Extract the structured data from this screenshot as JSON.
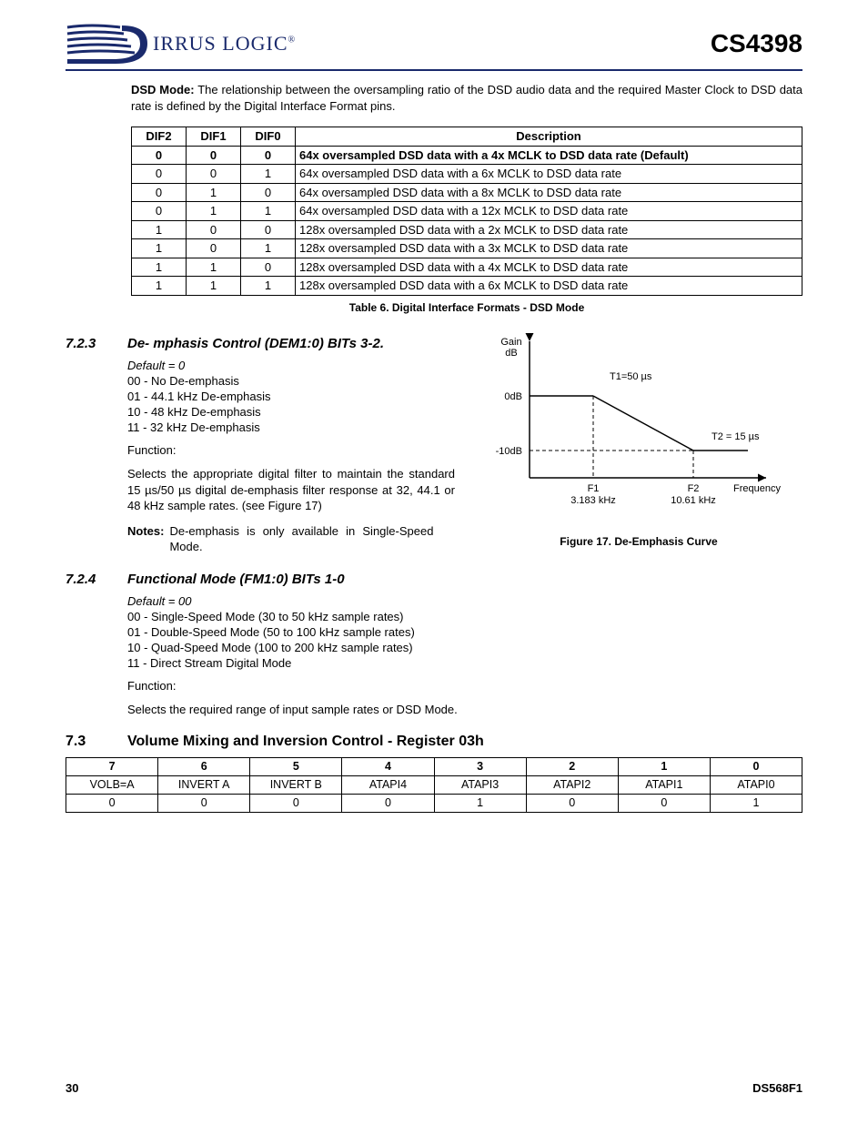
{
  "header": {
    "logo_text": "IRRUS LOGIC",
    "logo_reg": "®",
    "doc_title": "CS4398"
  },
  "intro": {
    "bold_lead": "DSD Mode:",
    "text": " The relationship between the oversampling ratio of the DSD audio data and the required Master Clock to DSD data rate is defined by the Digital Interface Format pins."
  },
  "table6": {
    "headers": [
      "DIF2",
      "DIF1",
      "DIF0",
      "Description"
    ],
    "rows": [
      {
        "dif2": "0",
        "dif1": "0",
        "dif0": "0",
        "desc": "64x oversampled DSD data with a 4x MCLK to DSD data rate (Default)",
        "bold": true
      },
      {
        "dif2": "0",
        "dif1": "0",
        "dif0": "1",
        "desc": "64x oversampled DSD data with a 6x MCLK to DSD data rate",
        "bold": false
      },
      {
        "dif2": "0",
        "dif1": "1",
        "dif0": "0",
        "desc": "64x oversampled DSD data with a 8x MCLK to DSD data rate",
        "bold": false
      },
      {
        "dif2": "0",
        "dif1": "1",
        "dif0": "1",
        "desc": "64x oversampled DSD data with a 12x MCLK to DSD data rate",
        "bold": false
      },
      {
        "dif2": "1",
        "dif1": "0",
        "dif0": "0",
        "desc": "128x oversampled DSD data with a 2x MCLK to DSD data rate",
        "bold": false
      },
      {
        "dif2": "1",
        "dif1": "0",
        "dif0": "1",
        "desc": "128x oversampled DSD data with a 3x MCLK to DSD data rate",
        "bold": false
      },
      {
        "dif2": "1",
        "dif1": "1",
        "dif0": "0",
        "desc": "128x oversampled DSD data with a 4x MCLK to DSD data rate",
        "bold": false
      },
      {
        "dif2": "1",
        "dif1": "1",
        "dif0": "1",
        "desc": "128x oversampled DSD data with a 6x MCLK to DSD data rate",
        "bold": false
      }
    ],
    "caption": "Table 6. Digital Interface Formats - DSD Mode"
  },
  "sec723": {
    "num": "7.2.3",
    "title": "De-  mphasis Control (DEM1:0) BITs 3-2.",
    "default": "Default = 0",
    "opts": [
      "00 - No De-emphasis",
      "01 - 44.1 kHz De-emphasis",
      "10 - 48 kHz De-emphasis",
      "11 - 32 kHz De-emphasis"
    ],
    "func_label": "Function:",
    "func_text": "Selects the appropriate digital filter to maintain the standard 15 µs/50 µs digital de-emphasis filter response at 32, 44.1 or 48 kHz sample rates. (see Figure 17)",
    "notes_label": "Notes:",
    "notes_text": "De-emphasis is only available in Single-Speed Mode."
  },
  "fig17": {
    "y_label_top": "Gain",
    "y_label_unit": "dB",
    "y_tick_0": "0dB",
    "y_tick_m10": "-10dB",
    "t1": "T1=50 µs",
    "t2": "T2 = 15 µs",
    "f1_lbl": "F1",
    "f1_val": "3.183 kHz",
    "f2_lbl": "F2",
    "f2_val": "10.61 kHz",
    "x_label": "Frequency",
    "caption": "Figure 17.  De-Emphasis Curve"
  },
  "sec724": {
    "num": "7.2.4",
    "title": "Functional Mode (FM1:0) BITs 1-0",
    "default": "Default = 00",
    "opts": [
      "00 - Single-Speed Mode (30 to 50 kHz sample rates)",
      "01 - Double-Speed Mode (50 to 100 kHz sample rates)",
      "10 - Quad-Speed Mode (100 to 200 kHz sample rates)",
      "11 - Direct Stream Digital Mode"
    ],
    "func_label": "Function:",
    "func_text": "Selects the required range of input sample rates or DSD Mode."
  },
  "sec73": {
    "num": "7.3",
    "title": "Volume Mixing and Inversion Control - Register 03h",
    "bits": [
      "7",
      "6",
      "5",
      "4",
      "3",
      "2",
      "1",
      "0"
    ],
    "names": [
      "VOLB=A",
      "INVERT A",
      "INVERT B",
      "ATAPI4",
      "ATAPI3",
      "ATAPI2",
      "ATAPI1",
      "ATAPI0"
    ],
    "vals": [
      "0",
      "0",
      "0",
      "0",
      "1",
      "0",
      "0",
      "1"
    ]
  },
  "footer": {
    "page": "30",
    "docnum": "DS568F1"
  }
}
